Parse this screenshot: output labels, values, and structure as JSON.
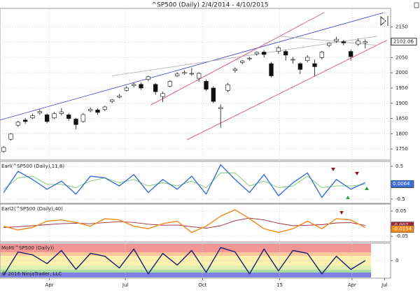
{
  "chart_data": [
    {
      "type": "candlestick",
      "title": "^SP500 (Daily)  2/4/2014 - 4/10/2015",
      "x": [
        0,
        6,
        12,
        18,
        24,
        30,
        36,
        42,
        48,
        54,
        60,
        66,
        72,
        78,
        84,
        90,
        96,
        102,
        108,
        114,
        120,
        126,
        132,
        138,
        144,
        150,
        156,
        162,
        168,
        174,
        180,
        186,
        192,
        198,
        204,
        210,
        216,
        222,
        228,
        234,
        240,
        246,
        252,
        258,
        264,
        270,
        276,
        282,
        288,
        294,
        300
      ],
      "open": [
        1742,
        1782,
        1828,
        1845,
        1852,
        1868,
        1862,
        1852,
        1866,
        1862,
        1848,
        1840,
        1876,
        1878,
        1880,
        1906,
        1920,
        1942,
        1958,
        1962,
        1978,
        1962,
        1922,
        1956,
        1990,
        1998,
        1996,
        1982,
        1972,
        1950,
        1882,
        1942,
        2008,
        2034,
        2046,
        2062,
        2068,
        2030,
        2070,
        2070,
        2042,
        2030,
        2040,
        2030,
        2050,
        2090,
        2104,
        2102,
        2070,
        2094,
        2098
      ],
      "high": [
        1760,
        1802,
        1842,
        1852,
        1866,
        1880,
        1866,
        1872,
        1884,
        1868,
        1852,
        1868,
        1886,
        1884,
        1892,
        1914,
        1930,
        1956,
        1968,
        1968,
        1990,
        1966,
        1938,
        1976,
        2002,
        2008,
        2016,
        2002,
        1978,
        1956,
        1896,
        1966,
        2018,
        2042,
        2052,
        2070,
        2075,
        2036,
        2088,
        2076,
        2052,
        2034,
        2058,
        2044,
        2072,
        2100,
        2118,
        2108,
        2076,
        2112,
        2110
      ],
      "low": [
        1737,
        1778,
        1822,
        1832,
        1848,
        1862,
        1834,
        1848,
        1860,
        1842,
        1815,
        1836,
        1870,
        1862,
        1874,
        1900,
        1916,
        1938,
        1952,
        1944,
        1972,
        1928,
        1904,
        1952,
        1986,
        1994,
        1990,
        1970,
        1940,
        1900,
        1820,
        1936,
        2000,
        2028,
        2040,
        2056,
        2050,
        1985,
        2062,
        2040,
        2030,
        1996,
        2034,
        1990,
        2044,
        2084,
        2098,
        2090,
        2040,
        2088,
        2080
      ],
      "close": [
        1755,
        1799,
        1838,
        1840,
        1859,
        1873,
        1840,
        1866,
        1872,
        1850,
        1830,
        1863,
        1880,
        1870,
        1888,
        1911,
        1924,
        1950,
        1962,
        1950,
        1987,
        1938,
        1932,
        1972,
        1996,
        2001,
        1998,
        1998,
        1946,
        1906,
        1886,
        1961,
        2012,
        2039,
        2048,
        2067,
        2060,
        1990,
        2082,
        2058,
        2044,
        2011,
        2051,
        2020,
        2068,
        2097,
        2110,
        2098,
        2053,
        2104,
        2102.06
      ],
      "up_color": "#ffffff",
      "down_color": "#111111",
      "xlim": [
        -3,
        321
      ],
      "ylim": [
        1716,
        2209
      ],
      "yticks": [
        1750,
        1800,
        1850,
        1900,
        1950,
        2000,
        2050,
        2100,
        2150
      ],
      "trendlines": [
        {
          "x": [
            -3,
            315
          ],
          "y": [
            1845,
            2197
          ],
          "color": "#3340cc"
        },
        {
          "x": [
            122,
            266
          ],
          "y": [
            1894,
            2198
          ],
          "color": "#e0406a"
        },
        {
          "x": [
            152,
            318
          ],
          "y": [
            1780,
            2107
          ],
          "color": "#e0406a"
        },
        {
          "x": [
            90,
            310
          ],
          "y": [
            1990,
            2120
          ],
          "color": "#b0b0b0"
        },
        {
          "x": [
            230,
            310
          ],
          "y": [
            2120,
            2090
          ],
          "color": "#b0b0b0"
        }
      ]
    },
    {
      "type": "line",
      "label": "Earl(^SP500 (Daily),11,8)",
      "x": [
        0,
        12,
        24,
        36,
        48,
        60,
        72,
        84,
        96,
        108,
        120,
        132,
        144,
        156,
        168,
        180,
        192,
        204,
        216,
        228,
        240,
        252,
        264,
        276,
        288,
        300
      ],
      "series": [
        {
          "color": "#7acc6a",
          "values": [
            -0.2,
            0.15,
            0.2,
            -0.05,
            -0.05,
            -0.15,
            0.05,
            0.15,
            0.0,
            0.1,
            -0.1,
            0.0,
            -0.1,
            0.05,
            -0.15,
            0.3,
            0.3,
            -0.1,
            0.05,
            -0.15,
            -0.1,
            0.2,
            -0.15,
            -0.1,
            -0.1,
            -0.05
          ]
        },
        {
          "color": "#3a6fd8",
          "values": [
            -0.3,
            0.35,
            0.1,
            -0.2,
            0.05,
            -0.35,
            0.2,
            0.15,
            -0.1,
            0.25,
            -0.3,
            0.1,
            -0.2,
            0.2,
            -0.35,
            0.55,
            0.1,
            -0.3,
            0.25,
            -0.4,
            0.0,
            0.3,
            -0.45,
            0.1,
            -0.2,
            0.0064
          ]
        }
      ],
      "xlim": [
        -3,
        321
      ],
      "ylim": [
        -0.61,
        0.63
      ],
      "yticks": [
        0.5,
        -0.5
      ]
    },
    {
      "type": "line",
      "label": "Earl2(^SP500 (Daily),40)",
      "x": [
        0,
        12,
        24,
        36,
        48,
        60,
        72,
        84,
        96,
        108,
        120,
        132,
        144,
        156,
        168,
        180,
        192,
        204,
        216,
        228,
        240,
        252,
        264,
        276,
        288,
        300
      ],
      "series": [
        {
          "color": "#a02838",
          "values": [
            -0.015,
            -0.012,
            -0.008,
            -0.004,
            0.0,
            0.002,
            0.0,
            0.004,
            0.008,
            0.005,
            -0.002,
            -0.006,
            -0.005,
            -0.012,
            -0.018,
            -0.008,
            0.012,
            0.022,
            0.015,
            0.002,
            -0.008,
            -0.006,
            -0.004,
            0.003,
            0.004,
            -0.007
          ]
        },
        {
          "color": "#f08a1a",
          "values": [
            -0.01,
            -0.025,
            -0.015,
            0.01,
            0.015,
            0.005,
            -0.01,
            0.02,
            0.015,
            -0.01,
            -0.02,
            0.0,
            0.01,
            -0.035,
            -0.01,
            0.03,
            0.055,
            0.02,
            -0.02,
            -0.035,
            -0.02,
            0.01,
            -0.02,
            0.02,
            0.015,
            -0.0154
          ]
        }
      ],
      "xlim": [
        -3,
        321
      ],
      "ylim": [
        -0.069,
        0.075
      ],
      "yticks": [
        0.05,
        -0.05
      ]
    },
    {
      "type": "line",
      "label": "MoM(^SP500 (Daily))",
      "annotation": "© 2016 NinjaTrader, LLC",
      "x": [
        0,
        12,
        24,
        36,
        48,
        60,
        72,
        84,
        96,
        108,
        120,
        132,
        144,
        156,
        168,
        180,
        192,
        204,
        216,
        228,
        240,
        252,
        264,
        276,
        288,
        300
      ],
      "series": [
        {
          "color": "#1c1c6e",
          "values": [
            -1.0,
            0.6,
            0.4,
            -0.2,
            0.7,
            -0.6,
            0.5,
            0.3,
            -0.5,
            0.8,
            -0.9,
            0.5,
            -0.3,
            0.7,
            -0.8,
            0.9,
            0.6,
            -0.9,
            0.8,
            -0.7,
            0.7,
            0.5,
            -0.9,
            0.3,
            -0.6,
            0.0
          ]
        }
      ],
      "xlim": [
        -3,
        321
      ],
      "ylim": [
        -1.15,
        1.15
      ],
      "yticks": [
        0
      ],
      "xticks": [
        {
          "value": 38,
          "label": "Apr"
        },
        {
          "value": 101,
          "label": "Jul"
        },
        {
          "value": 165,
          "label": "Oct"
        },
        {
          "value": 229,
          "label": "15"
        },
        {
          "value": 289,
          "label": "Apr"
        },
        {
          "value": 316,
          "label": "Jul"
        }
      ]
    }
  ]
}
